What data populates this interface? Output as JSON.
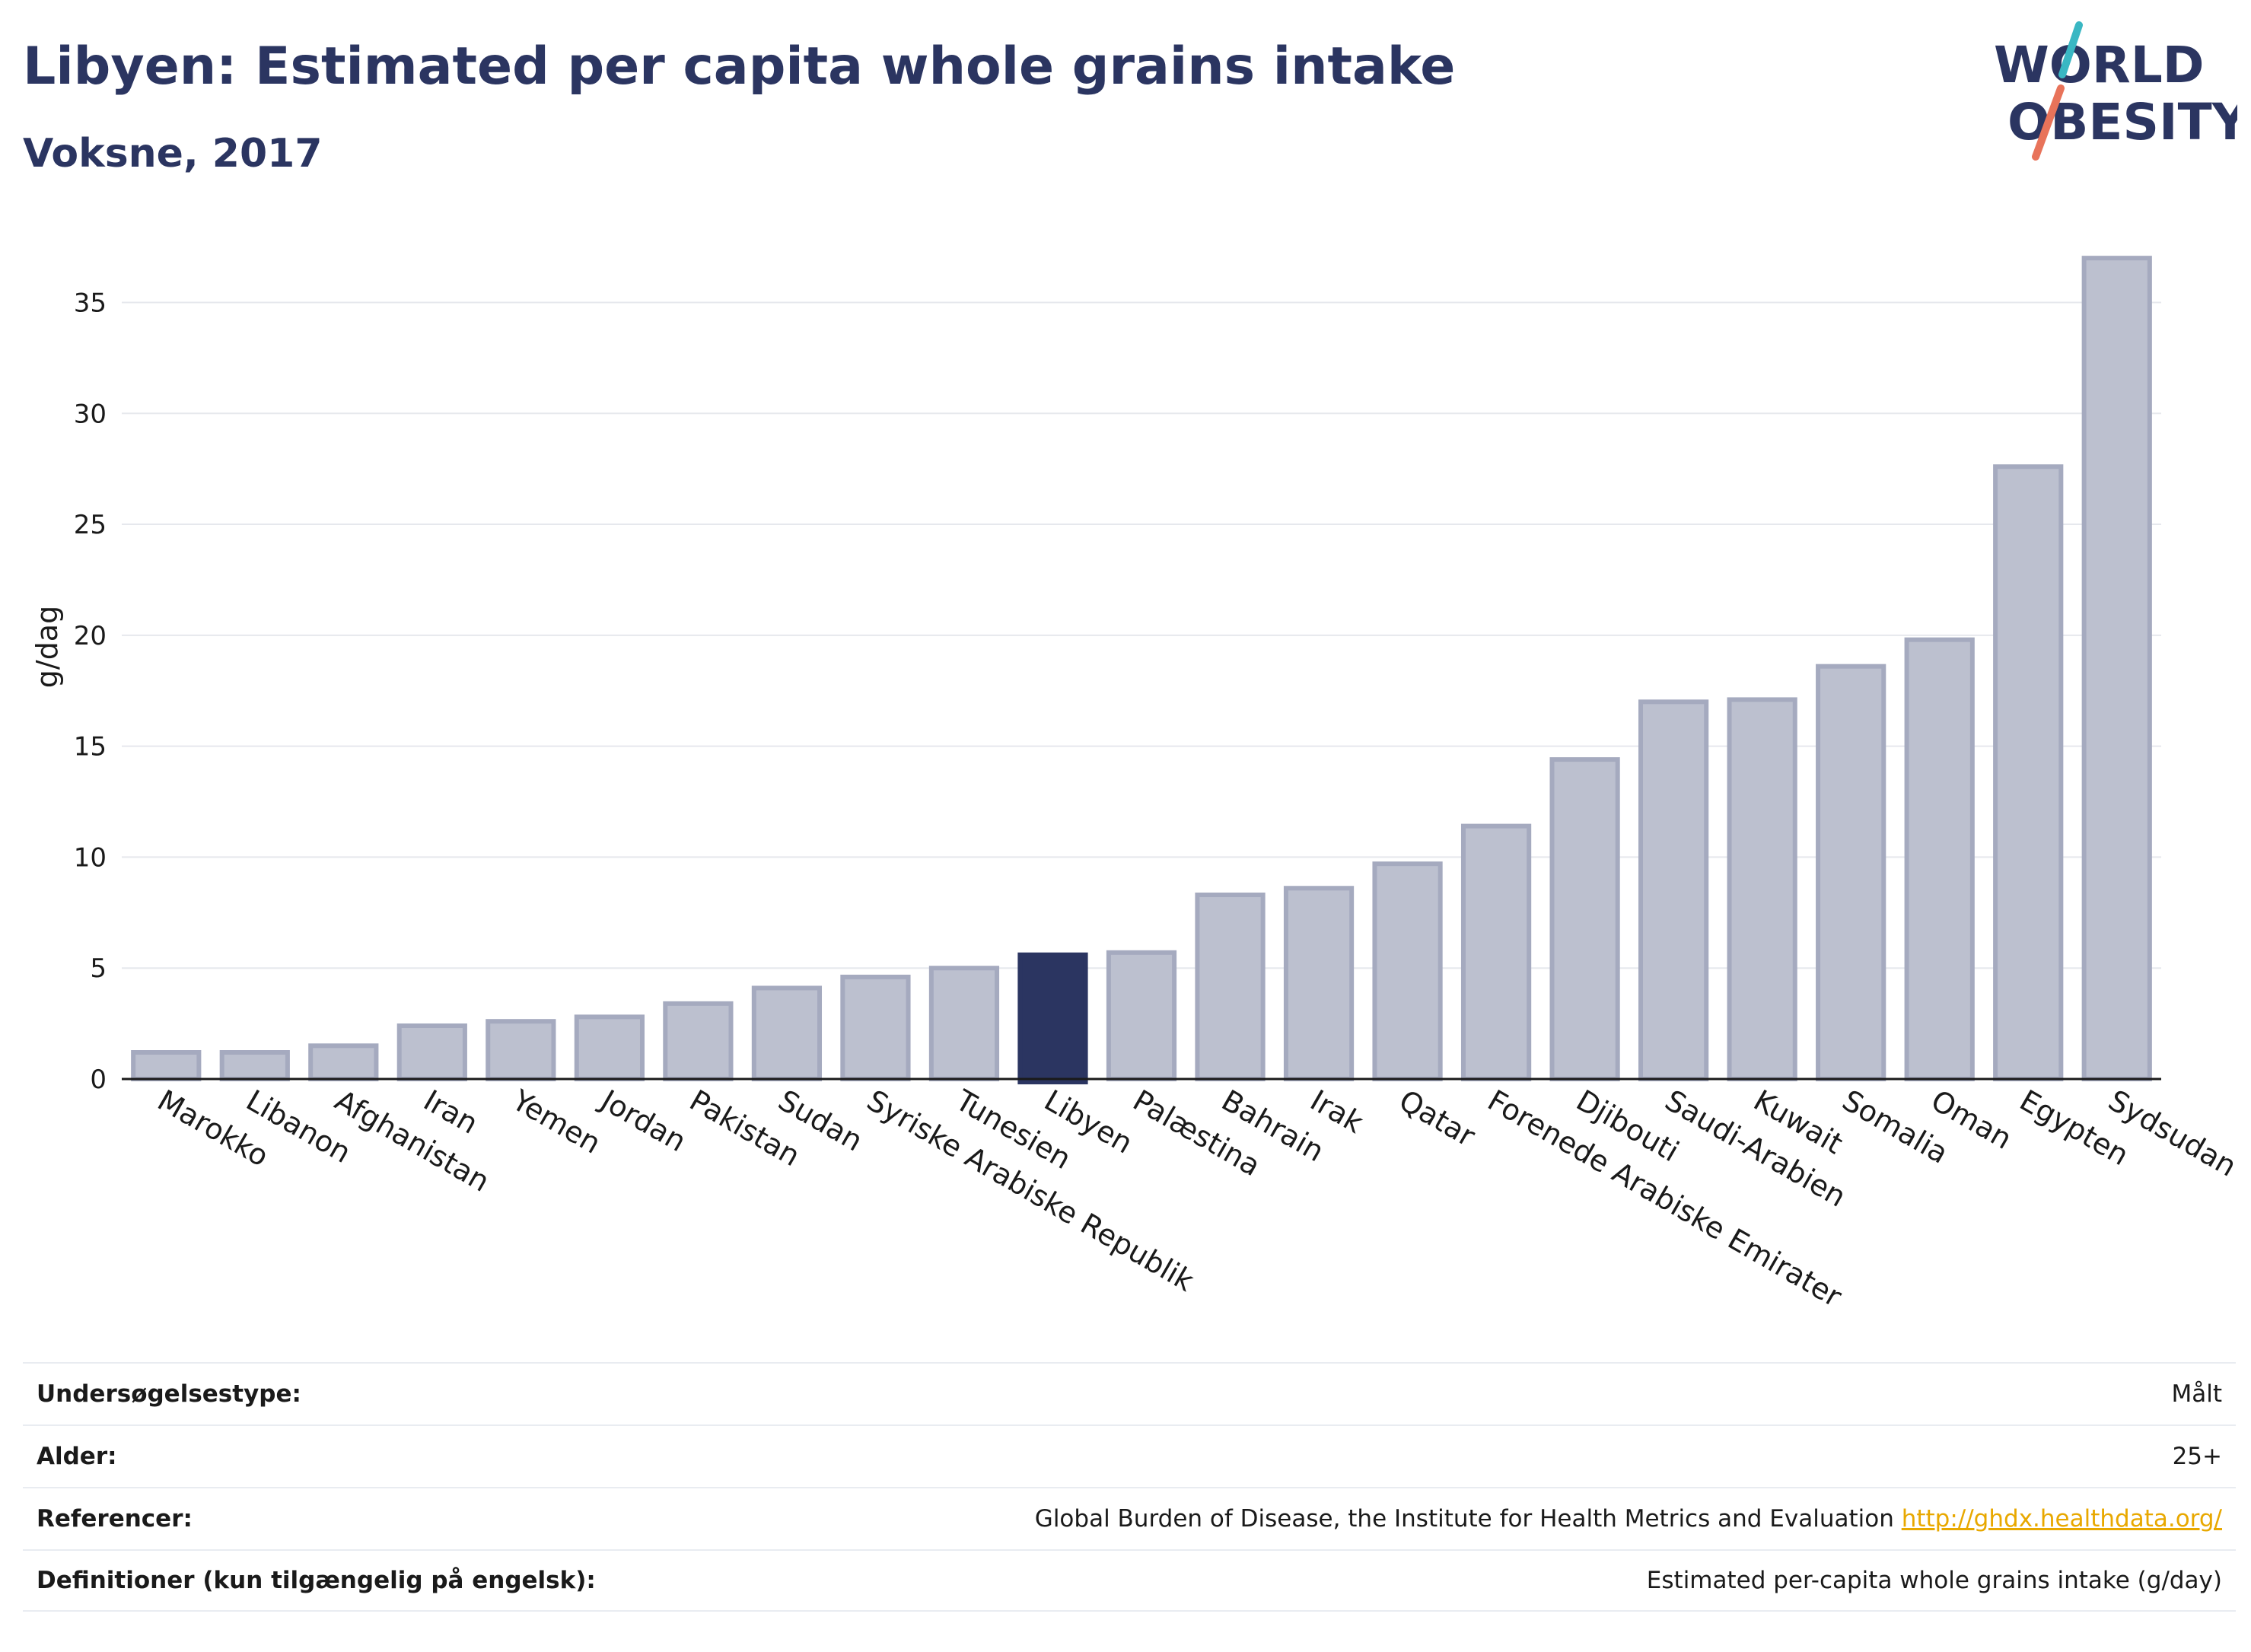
{
  "header": {
    "title": "Libyen: Estimated per capita whole grains intake",
    "subtitle": "Voksne, 2017"
  },
  "logo": {
    "line1": "WORLD",
    "line2": "OBESITY",
    "colors": {
      "text": "#2b3561",
      "slash_top": "#3ab7c3",
      "slash_bottom": "#e8735a"
    }
  },
  "colors": {
    "bar": "#bcc0cf",
    "bar_border": "#a5aabf",
    "highlight": "#2b3561",
    "grid": "#e6e8ed",
    "axis": "#1a1a1a"
  },
  "chart_data": {
    "type": "bar",
    "ylabel": "g/dag",
    "ylim": [
      0,
      38
    ],
    "yticks": [
      0,
      5,
      10,
      15,
      20,
      25,
      30,
      35
    ],
    "grid": true,
    "highlight": "Libyen",
    "categories": [
      "Marokko",
      "Libanon",
      "Afghanistan",
      "Iran",
      "Yemen",
      "Jordan",
      "Pakistan",
      "Sudan",
      "Syriske Arabiske Republik",
      "Tunesien",
      "Libyen",
      "Palæstina",
      "Bahrain",
      "Irak",
      "Qatar",
      "Forenede Arabiske Emirater",
      "Djibouti",
      "Saudi-Arabien",
      "Kuwait",
      "Somalia",
      "Oman",
      "Egypten",
      "Sydsudan"
    ],
    "values": [
      1.2,
      1.2,
      1.5,
      2.4,
      2.6,
      2.8,
      3.4,
      4.1,
      4.6,
      5.0,
      5.6,
      5.7,
      8.3,
      8.6,
      9.7,
      11.4,
      14.4,
      17.0,
      17.1,
      18.6,
      19.8,
      27.6,
      37.0
    ]
  },
  "info": {
    "rows": [
      {
        "label": "Undersøgelsestype:",
        "value": "Målt"
      },
      {
        "label": "Alder:",
        "value": "25+"
      },
      {
        "label": "Referencer:",
        "value": "Global Burden of Disease, the Institute for Health Metrics and Evaluation",
        "link": "http://ghdx.healthdata.org/"
      },
      {
        "label": "Definitioner (kun tilgængelig på engelsk):",
        "value": "Estimated per-capita whole grains intake (g/day)"
      }
    ]
  }
}
